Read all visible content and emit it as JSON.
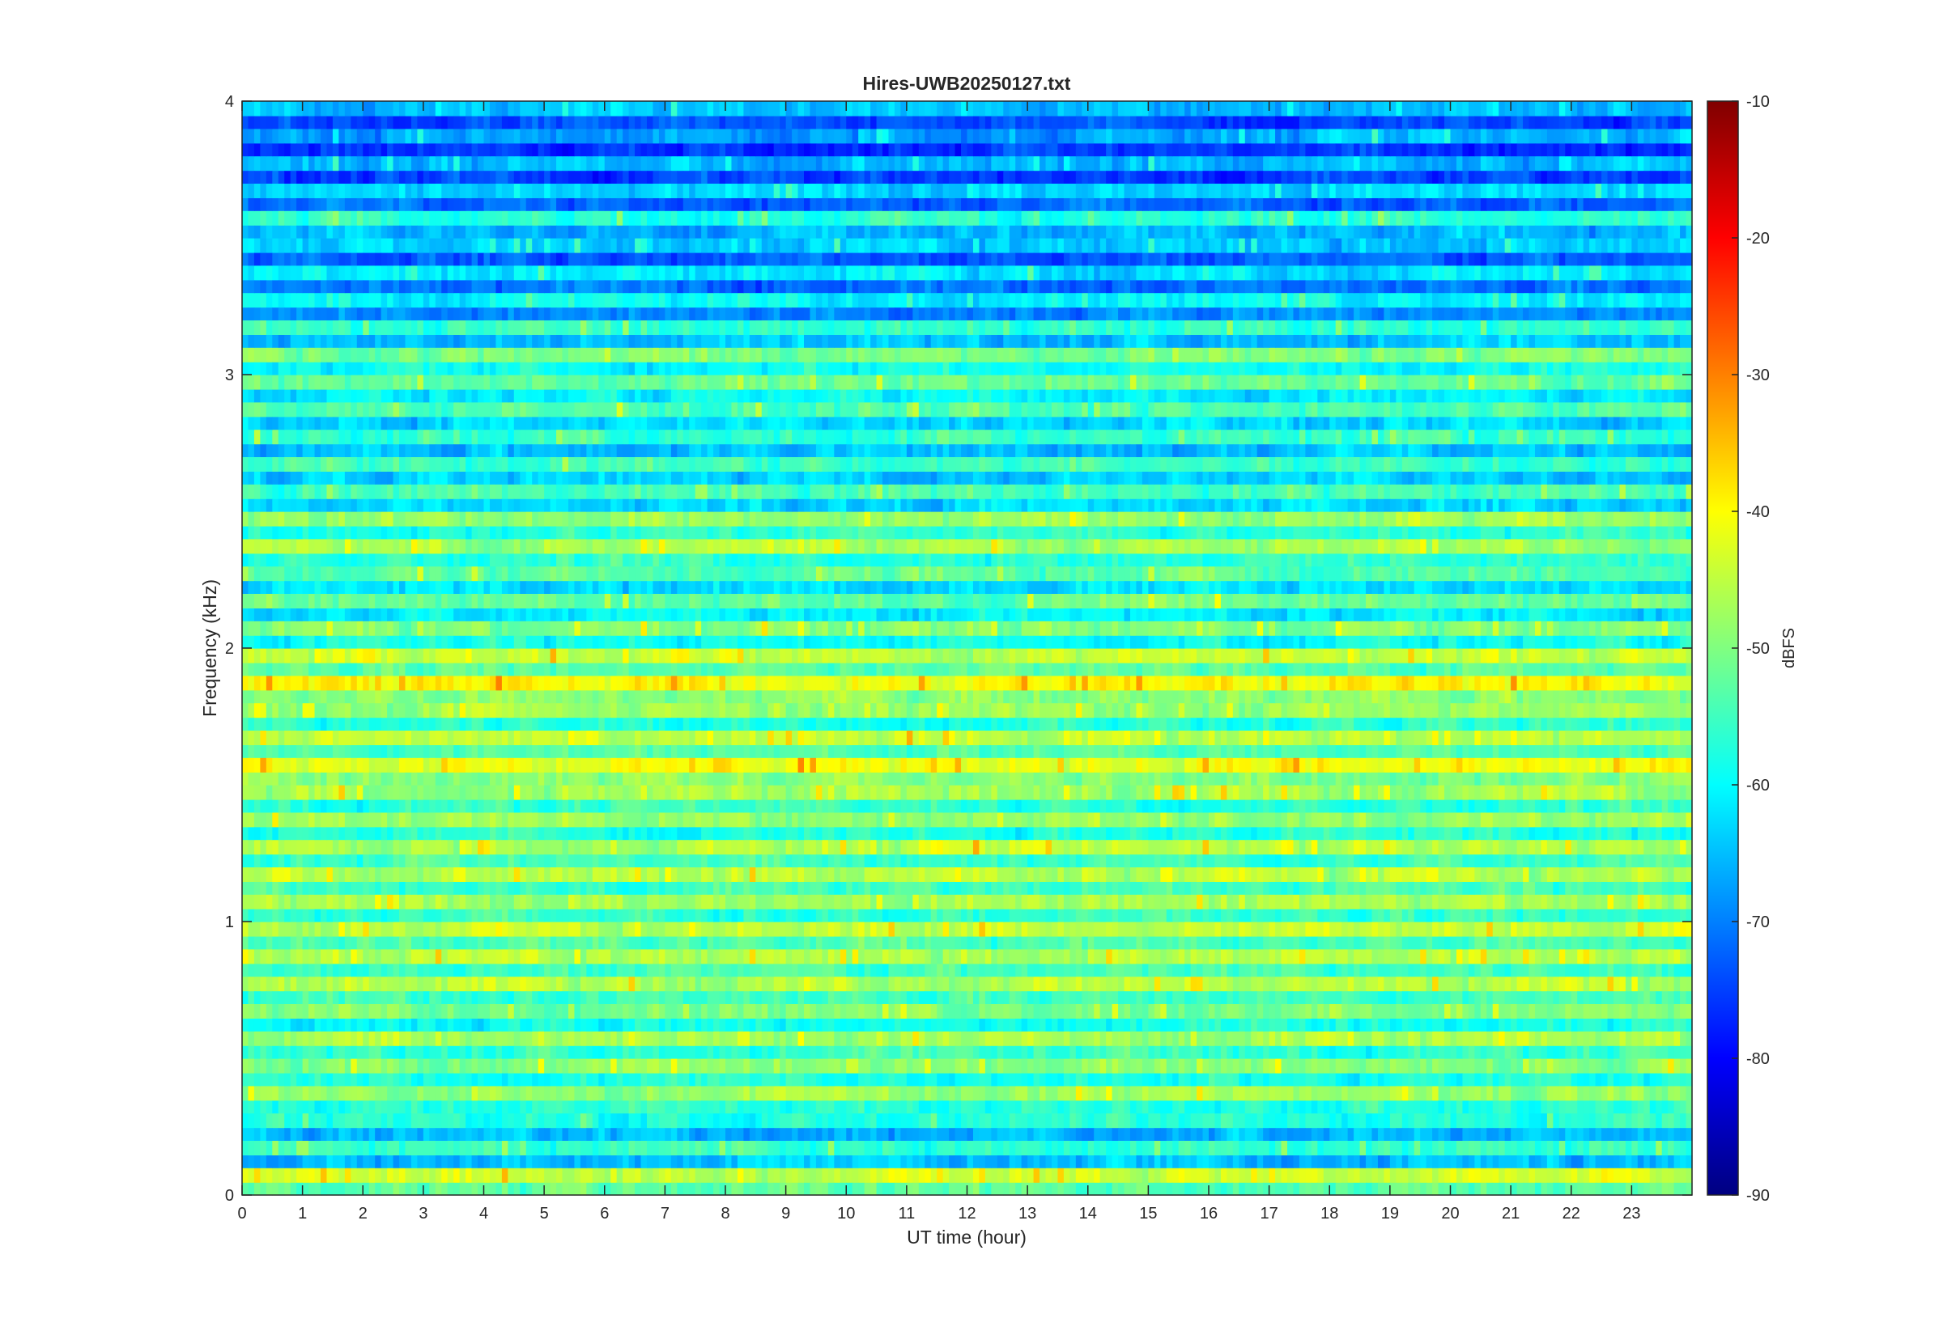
{
  "chart_data": {
    "type": "heatmap",
    "title": "Hires-UWB20250127.txt",
    "xlabel": "UT time (hour)",
    "ylabel": "Frequency (kHz)",
    "xlim": [
      0,
      24
    ],
    "ylim": [
      0,
      4
    ],
    "x_ticks": [
      "0",
      "1",
      "2",
      "3",
      "4",
      "5",
      "6",
      "7",
      "8",
      "9",
      "10",
      "11",
      "12",
      "13",
      "14",
      "15",
      "16",
      "17",
      "18",
      "19",
      "20",
      "21",
      "22",
      "23"
    ],
    "y_ticks": [
      "0",
      "1",
      "2",
      "3",
      "4"
    ],
    "colorbar": {
      "label": "dBFS",
      "clim": [
        -90,
        -10
      ],
      "ticks": [
        "-90",
        "-80",
        "-70",
        "-60",
        "-50",
        "-40",
        "-30",
        "-20",
        "-10"
      ],
      "colormap": "jet",
      "colors": [
        "#00007f",
        "#0000ff",
        "#007fff",
        "#00ffff",
        "#7fff7f",
        "#ffff00",
        "#ff7f00",
        "#ff0000",
        "#7f0000"
      ]
    },
    "grid": false,
    "frequency_bands_khz": [
      0.05,
      0.15,
      0.25,
      0.35,
      0.45,
      0.55,
      0.65,
      0.75,
      0.85,
      0.95,
      1.05,
      1.15,
      1.25,
      1.35,
      1.45,
      1.55,
      1.65,
      1.75,
      1.85,
      1.95,
      2.05,
      2.15,
      2.25,
      2.35,
      2.45,
      2.55,
      2.65,
      2.75,
      2.85,
      2.95,
      3.05,
      3.15,
      3.25,
      3.35,
      3.45,
      3.55,
      3.65,
      3.75,
      3.85,
      3.95
    ],
    "band_level_dbfs": [
      -44,
      -56,
      -57,
      -48,
      -49,
      -47,
      -50,
      -46,
      -46,
      -45,
      -47,
      -46,
      -46,
      -48,
      -47,
      -41,
      -45,
      -48,
      -40,
      -44,
      -50,
      -52,
      -53,
      -47,
      -48,
      -54,
      -55,
      -56,
      -54,
      -52,
      -50,
      -56,
      -60,
      -62,
      -64,
      -57,
      -63,
      -66,
      -67,
      -65
    ]
  }
}
